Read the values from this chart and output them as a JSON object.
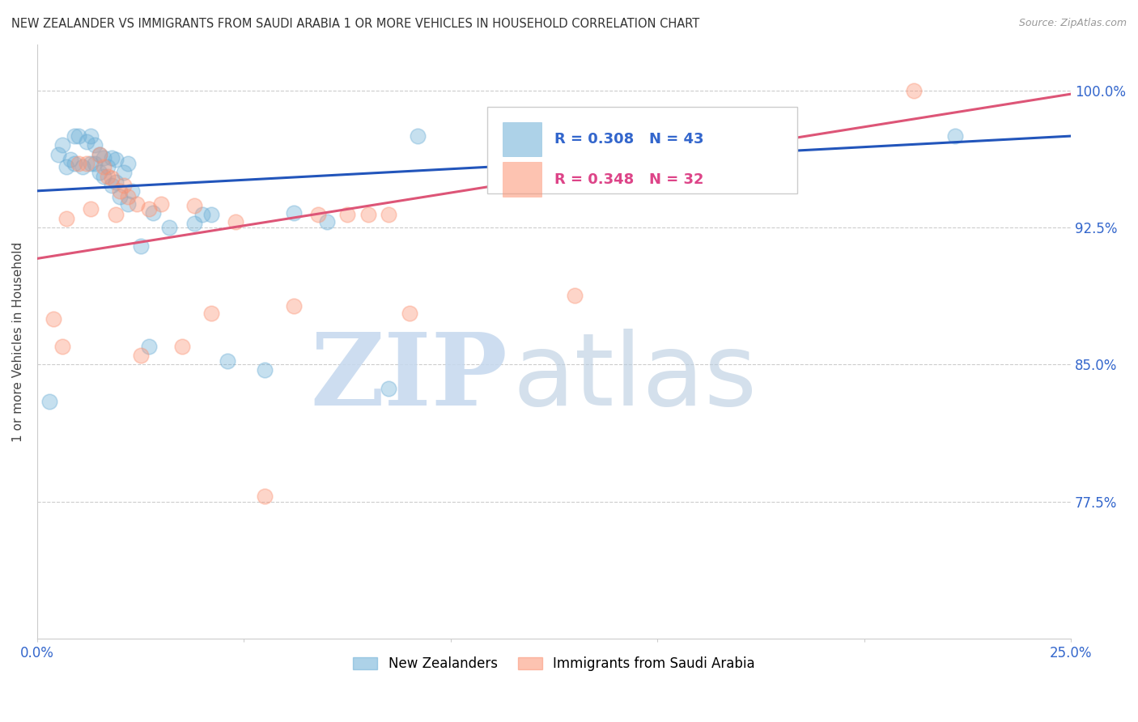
{
  "title": "NEW ZEALANDER VS IMMIGRANTS FROM SAUDI ARABIA 1 OR MORE VEHICLES IN HOUSEHOLD CORRELATION CHART",
  "source": "Source: ZipAtlas.com",
  "ylabel": "1 or more Vehicles in Household",
  "ylabel_ticks": [
    "100.0%",
    "92.5%",
    "85.0%",
    "77.5%"
  ],
  "ylabel_values": [
    1.0,
    0.925,
    0.85,
    0.775
  ],
  "xlim": [
    0.0,
    0.25
  ],
  "ylim": [
    0.7,
    1.025
  ],
  "blue_R": 0.308,
  "blue_N": 43,
  "pink_R": 0.348,
  "pink_N": 32,
  "blue_color": "#6baed6",
  "pink_color": "#fc9272",
  "blue_line_color": "#2255bb",
  "pink_line_color": "#dd5577",
  "legend_label_blue": "New Zealanders",
  "legend_label_pink": "Immigrants from Saudi Arabia",
  "blue_x": [
    0.003,
    0.005,
    0.006,
    0.007,
    0.008,
    0.009,
    0.009,
    0.01,
    0.011,
    0.012,
    0.013,
    0.013,
    0.014,
    0.014,
    0.015,
    0.015,
    0.016,
    0.016,
    0.017,
    0.018,
    0.018,
    0.019,
    0.019,
    0.02,
    0.021,
    0.022,
    0.022,
    0.023,
    0.025,
    0.027,
    0.028,
    0.032,
    0.038,
    0.04,
    0.042,
    0.046,
    0.055,
    0.062,
    0.07,
    0.085,
    0.092,
    0.168,
    0.222
  ],
  "blue_y": [
    0.83,
    0.965,
    0.97,
    0.958,
    0.962,
    0.975,
    0.96,
    0.975,
    0.958,
    0.972,
    0.96,
    0.975,
    0.96,
    0.97,
    0.955,
    0.965,
    0.953,
    0.963,
    0.958,
    0.948,
    0.963,
    0.95,
    0.962,
    0.942,
    0.955,
    0.938,
    0.96,
    0.945,
    0.915,
    0.86,
    0.933,
    0.925,
    0.927,
    0.932,
    0.932,
    0.852,
    0.847,
    0.933,
    0.928,
    0.837,
    0.975,
    0.975,
    0.975
  ],
  "pink_x": [
    0.004,
    0.006,
    0.007,
    0.01,
    0.012,
    0.013,
    0.015,
    0.016,
    0.017,
    0.018,
    0.019,
    0.02,
    0.021,
    0.022,
    0.024,
    0.025,
    0.027,
    0.03,
    0.035,
    0.038,
    0.042,
    0.048,
    0.055,
    0.062,
    0.068,
    0.075,
    0.08,
    0.085,
    0.09,
    0.13,
    0.15,
    0.212
  ],
  "pink_y": [
    0.875,
    0.86,
    0.93,
    0.96,
    0.96,
    0.935,
    0.965,
    0.958,
    0.953,
    0.952,
    0.932,
    0.945,
    0.948,
    0.942,
    0.938,
    0.855,
    0.935,
    0.938,
    0.86,
    0.937,
    0.878,
    0.928,
    0.778,
    0.882,
    0.932,
    0.932,
    0.932,
    0.932,
    0.878,
    0.888,
    0.958,
    1.0
  ],
  "blue_trend_x0": 0.0,
  "blue_trend_y0": 0.945,
  "blue_trend_x1": 0.25,
  "blue_trend_y1": 0.975,
  "pink_trend_x0": 0.0,
  "pink_trend_y0": 0.908,
  "pink_trend_x1": 0.25,
  "pink_trend_y1": 0.998,
  "watermark_zip_color": "#c5d8ee",
  "watermark_atlas_color": "#b8cce0",
  "background_color": "#ffffff"
}
